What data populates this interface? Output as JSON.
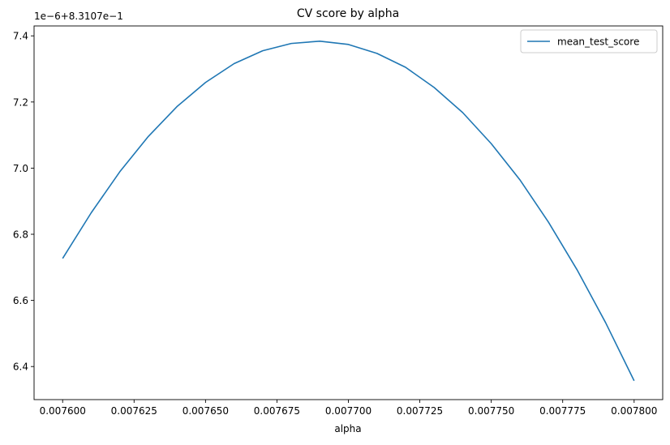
{
  "chart_data": {
    "type": "line",
    "title": "CV score by alpha",
    "xlabel": "alpha",
    "ylabel": "",
    "offset_label": "1e−6+8.3107e−1",
    "legend_position": "top-right",
    "grid": false,
    "xlim": [
      0.00759,
      0.00781
    ],
    "ylim": [
      6.3,
      7.43
    ],
    "x_ticks": [
      0.0076,
      0.007625,
      0.00765,
      0.007675,
      0.0077,
      0.007725,
      0.00775,
      0.007775,
      0.0078
    ],
    "x_tick_labels": [
      "0.007600",
      "0.007625",
      "0.007650",
      "0.007675",
      "0.007700",
      "0.007725",
      "0.007750",
      "0.007775",
      "0.007800"
    ],
    "y_ticks": [
      6.4,
      6.6,
      6.8,
      7.0,
      7.2,
      7.4
    ],
    "y_tick_labels": [
      "6.4",
      "6.6",
      "6.8",
      "7.0",
      "7.2",
      "7.4"
    ],
    "series": [
      {
        "name": "mean_test_score",
        "color": "#1f77b4",
        "x": [
          0.0076,
          0.00761,
          0.00762,
          0.00763,
          0.00764,
          0.00765,
          0.00766,
          0.00767,
          0.00768,
          0.00769,
          0.0077,
          0.00771,
          0.00772,
          0.00773,
          0.00774,
          0.00775,
          0.00776,
          0.00777,
          0.00778,
          0.00779,
          0.0078
        ],
        "y": [
          6.727,
          6.865,
          6.989,
          7.096,
          7.186,
          7.259,
          7.316,
          7.355,
          7.377,
          7.384,
          7.374,
          7.347,
          7.305,
          7.244,
          7.168,
          7.074,
          6.965,
          6.837,
          6.693,
          6.533,
          6.357
        ]
      }
    ]
  }
}
